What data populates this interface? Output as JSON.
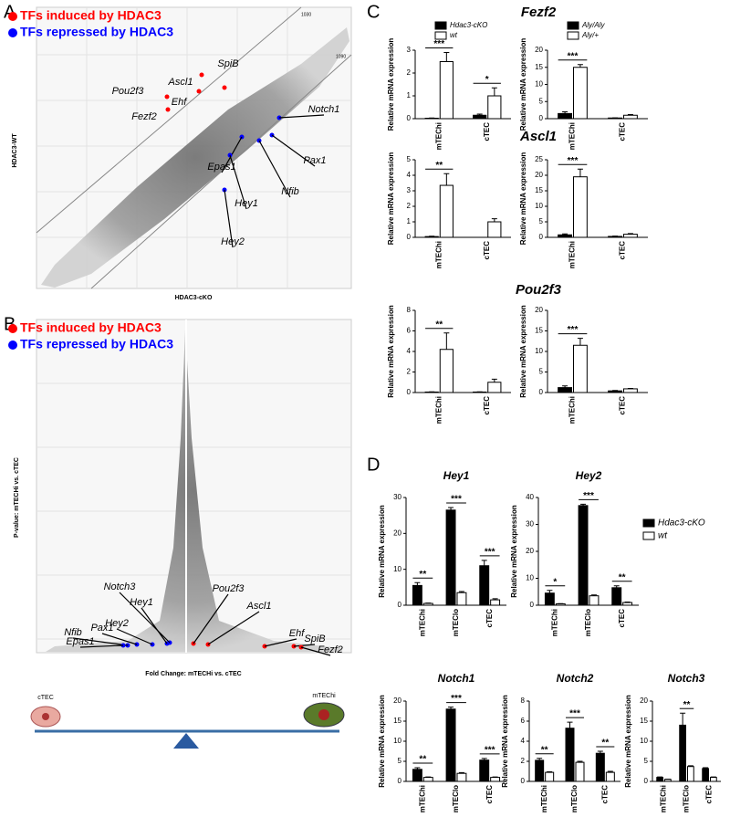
{
  "panels": [
    "A",
    "B",
    "C",
    "D"
  ],
  "chart_data": [
    {
      "type": "scatter",
      "x_label": "HDAC3-cKO",
      "y_label": "HDAC3-WT",
      "line_labels": [
        "1030",
        "1090"
      ],
      "series": [
        {
          "name": "TFs induced by HDAC3",
          "color": "#ff0000"
        },
        {
          "name": "TFs repressed by HDAC3",
          "color": "#0000ff"
        }
      ],
      "annotations": [
        "Ascl1",
        "SpiB",
        "Ehf",
        "Pou2f3",
        "Fezf2",
        "Notch1",
        "Pax1",
        "Nfib",
        "Epas1",
        "Hey1",
        "Hey2"
      ]
    },
    {
      "type": "scatter",
      "x_label": "Fold Change: mTECHi vs. cTEC",
      "y_label": "P-value: mTECHi vs. cTEC",
      "balance": [
        "cTEC",
        "mTEChi"
      ],
      "series": [
        {
          "name": "TFs induced by HDAC3",
          "color": "#ff0000"
        },
        {
          "name": "TFs repressed by HDAC3",
          "color": "#0000ff"
        }
      ],
      "annotations": [
        "Notch3",
        "Hey1",
        "Hey2",
        "Pax1",
        "Nfib",
        "Epas1",
        "Pou2f3",
        "Ascl1",
        "Ehf",
        "SpiB",
        "Fezf2"
      ]
    },
    {
      "type": "bar",
      "title": "Fezf2",
      "y_label": "Relative mRNA expression",
      "categories": [
        "mTEChi",
        "cTEC"
      ],
      "ylim": [
        0,
        3
      ],
      "yticks": [
        0,
        1,
        2,
        3
      ],
      "legend": "top",
      "series": [
        {
          "name": "Hdac3-cKO",
          "color": "#000000",
          "values": [
            0.02,
            0.15
          ],
          "errors": [
            0.01,
            0.05
          ]
        },
        {
          "name": "wt",
          "color": "#ffffff",
          "values": [
            2.5,
            1.0
          ],
          "errors": [
            0.4,
            0.35
          ]
        }
      ],
      "significance": [
        "***",
        "*"
      ]
    },
    {
      "type": "bar",
      "y_label": "Relative mRNA expression",
      "categories": [
        "mTEChi",
        "cTEC"
      ],
      "ylim": [
        0,
        20
      ],
      "yticks": [
        0,
        5,
        10,
        15,
        20
      ],
      "legend": "top",
      "series": [
        {
          "name": "Aly/Aly",
          "color": "#000000",
          "values": [
            1.5,
            0.2
          ],
          "errors": [
            0.5,
            0.05
          ]
        },
        {
          "name": "Aly/+",
          "color": "#ffffff",
          "values": [
            15,
            1.0
          ],
          "errors": [
            0.8,
            0.2
          ]
        }
      ],
      "significance": [
        "***",
        null
      ]
    },
    {
      "type": "bar",
      "title": "Ascl1",
      "y_label": "Relative mRNA expression",
      "categories": [
        "mTEChi",
        "cTEC"
      ],
      "ylim": [
        0,
        5
      ],
      "yticks": [
        0,
        1,
        2,
        3,
        4,
        5
      ],
      "series": [
        {
          "name": "Hdac3-cKO",
          "color": "#000000",
          "values": [
            0.05,
            0
          ],
          "errors": [
            0.02,
            0
          ]
        },
        {
          "name": "wt",
          "color": "#ffffff",
          "values": [
            3.35,
            1.0
          ],
          "errors": [
            0.75,
            0.2
          ]
        }
      ],
      "significance": [
        "**",
        null
      ]
    },
    {
      "type": "bar",
      "y_label": "Relative mRNA expression",
      "categories": [
        "mTEChi",
        "cTEC"
      ],
      "ylim": [
        0,
        25
      ],
      "yticks": [
        0,
        5,
        10,
        15,
        20,
        25
      ],
      "series": [
        {
          "name": "Aly/Aly",
          "color": "#000000",
          "values": [
            0.8,
            0.3
          ],
          "errors": [
            0.3,
            0.1
          ]
        },
        {
          "name": "Aly/+",
          "color": "#ffffff",
          "values": [
            19.5,
            1.0
          ],
          "errors": [
            2.5,
            0.2
          ]
        }
      ],
      "significance": [
        "***",
        null
      ]
    },
    {
      "type": "bar",
      "title": "Pou2f3",
      "y_label": "Relative mRNA expression",
      "categories": [
        "mTEChi",
        "cTEC"
      ],
      "ylim": [
        0,
        8
      ],
      "yticks": [
        0,
        2,
        4,
        6,
        8
      ],
      "series": [
        {
          "name": "Hdac3-cKO",
          "color": "#000000",
          "values": [
            0.05,
            0.05
          ],
          "errors": [
            0.02,
            0.02
          ]
        },
        {
          "name": "wt",
          "color": "#ffffff",
          "values": [
            4.2,
            1.0
          ],
          "errors": [
            1.6,
            0.3
          ]
        }
      ],
      "significance": [
        "**",
        null
      ]
    },
    {
      "type": "bar",
      "y_label": "Relative mRNA expression",
      "categories": [
        "mTEChi",
        "cTEC"
      ],
      "ylim": [
        0,
        20
      ],
      "yticks": [
        0,
        5,
        10,
        15,
        20
      ],
      "series": [
        {
          "name": "Aly/Aly",
          "color": "#000000",
          "values": [
            1.2,
            0.4
          ],
          "errors": [
            0.4,
            0.1
          ]
        },
        {
          "name": "Aly/+",
          "color": "#ffffff",
          "values": [
            11.5,
            0.9
          ],
          "errors": [
            1.7,
            0.1
          ]
        }
      ],
      "significance": [
        "***",
        null
      ]
    },
    {
      "type": "bar",
      "title": "Hey1",
      "y_label": "Relative mRNA expression",
      "categories": [
        "mTEChi",
        "mTEClo",
        "cTEC"
      ],
      "ylim": [
        0,
        30
      ],
      "yticks": [
        0,
        10,
        20,
        30
      ],
      "series": [
        {
          "name": "Hdac3-cKO",
          "color": "#000000",
          "values": [
            5.5,
            26.5,
            11
          ],
          "errors": [
            0.8,
            0.7,
            1.5
          ]
        },
        {
          "name": "wt",
          "color": "#ffffff",
          "values": [
            0.5,
            3.5,
            1.5
          ],
          "errors": [
            0.1,
            0.3,
            0.3
          ]
        }
      ],
      "significance": [
        "**",
        "***",
        "***"
      ]
    },
    {
      "type": "bar",
      "title": "Hey2",
      "y_label": "Relative mRNA expression",
      "categories": [
        "mTEChi",
        "mTEClo",
        "cTEC"
      ],
      "ylim": [
        0,
        40
      ],
      "yticks": [
        0,
        10,
        20,
        30,
        40
      ],
      "legend": "right",
      "series": [
        {
          "name": "Hdac3-cKO",
          "color": "#000000",
          "values": [
            4.5,
            37,
            6.5
          ],
          "errors": [
            1,
            0.5,
            0.7
          ]
        },
        {
          "name": "wt",
          "color": "#ffffff",
          "values": [
            0.5,
            3.5,
            1
          ],
          "errors": [
            0.1,
            0.3,
            0.2
          ]
        }
      ],
      "significance": [
        "*",
        "***",
        "**"
      ]
    },
    {
      "type": "bar",
      "title": "Notch1",
      "y_label": "Relative mRNA expression",
      "categories": [
        "mTEChi",
        "mTEClo",
        "cTEC"
      ],
      "ylim": [
        0,
        20
      ],
      "yticks": [
        0,
        5,
        10,
        15,
        20
      ],
      "series": [
        {
          "name": "Hdac3-cKO",
          "color": "#000000",
          "values": [
            3,
            18,
            5.3
          ],
          "errors": [
            0.4,
            0.5,
            0.4
          ]
        },
        {
          "name": "wt",
          "color": "#ffffff",
          "values": [
            1,
            2,
            1
          ],
          "errors": [
            0.1,
            0.2,
            0.1
          ]
        }
      ],
      "significance": [
        "**",
        "***",
        "***"
      ]
    },
    {
      "type": "bar",
      "title": "Notch2",
      "y_label": "Relative mRNA expression",
      "categories": [
        "mTEChi",
        "mTEClo",
        "cTEC"
      ],
      "ylim": [
        0,
        8
      ],
      "yticks": [
        0,
        2,
        4,
        6,
        8
      ],
      "series": [
        {
          "name": "Hdac3-cKO",
          "color": "#000000",
          "values": [
            2.1,
            5.3,
            2.8
          ],
          "errors": [
            0.2,
            0.6,
            0.2
          ]
        },
        {
          "name": "wt",
          "color": "#ffffff",
          "values": [
            0.9,
            1.9,
            0.9
          ],
          "errors": [
            0.05,
            0.1,
            0.1
          ]
        }
      ],
      "significance": [
        "**",
        "***",
        "**"
      ]
    },
    {
      "type": "bar",
      "title": "Notch3",
      "y_label": "Relative mRNA expression",
      "categories": [
        "mTEChi",
        "mTEClo",
        "cTEC"
      ],
      "ylim": [
        0,
        20
      ],
      "yticks": [
        0,
        5,
        10,
        15,
        20
      ],
      "series": [
        {
          "name": "Hdac3-cKO",
          "color": "#000000",
          "values": [
            1.0,
            14,
            3.2
          ],
          "errors": [
            0.1,
            3,
            0.2
          ]
        },
        {
          "name": "wt",
          "color": "#ffffff",
          "values": [
            0.5,
            3.7,
            1.0
          ],
          "errors": [
            0.05,
            0.2,
            0.1
          ]
        }
      ],
      "significance": [
        null,
        "**",
        null
      ]
    }
  ]
}
